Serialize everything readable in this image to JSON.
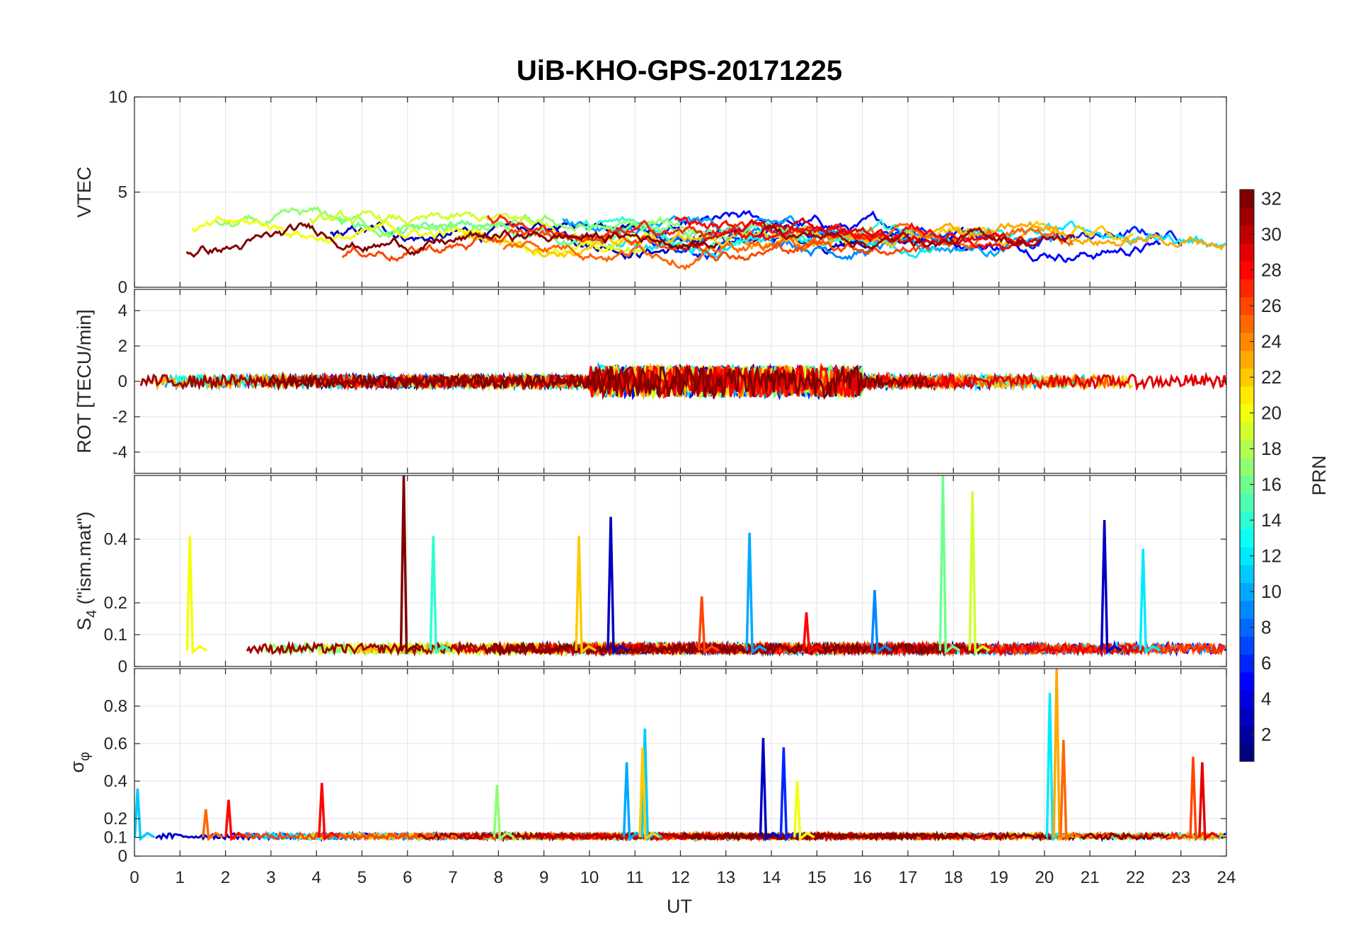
{
  "chart_data": {
    "type": "line",
    "title": "UiB-KHO-GPS-20171225",
    "xlabel": "UT",
    "xlim": [
      0,
      24
    ],
    "x_ticks": [
      "0",
      "1",
      "2",
      "3",
      "4",
      "5",
      "6",
      "7",
      "8",
      "9",
      "10",
      "11",
      "12",
      "13",
      "14",
      "15",
      "16",
      "17",
      "18",
      "19",
      "20",
      "21",
      "22",
      "23",
      "24"
    ],
    "panels": [
      {
        "ylabel": "VTEC",
        "ylim": [
          0,
          10
        ],
        "y_ticks": [
          "0",
          "5",
          "10"
        ],
        "y_tick_values": [
          0,
          5,
          10
        ],
        "baseline": 2.6,
        "noise": 1.1,
        "spikes": []
      },
      {
        "ylabel": "ROT [TECU/min]",
        "ylim": [
          -5.2,
          5.2
        ],
        "y_ticks": [
          "-4",
          "-2",
          "0",
          "2",
          "4"
        ],
        "y_tick_values": [
          -4,
          -2,
          0,
          2,
          4
        ],
        "baseline": 0,
        "noise": 0.6,
        "spikes": []
      },
      {
        "ylabel": "S4 (\"ism.mat\")",
        "ylabel_main": "S",
        "ylabel_sub": "4",
        "ylabel_rest": " (\"ism.mat\")",
        "ylim": [
          0,
          0.6
        ],
        "y_ticks": [
          "0",
          "0.1",
          "0.2",
          "0.4"
        ],
        "y_tick_values": [
          0,
          0.1,
          0.2,
          0.4
        ],
        "baseline": 0.05,
        "noise": 0.015,
        "spikes": [
          {
            "x": 1.25,
            "y": 0.41,
            "prn": 20
          },
          {
            "x": 5.95,
            "y": 0.6,
            "prn": 32
          },
          {
            "x": 6.6,
            "y": 0.41,
            "prn": 14
          },
          {
            "x": 9.8,
            "y": 0.41,
            "prn": 22
          },
          {
            "x": 10.5,
            "y": 0.47,
            "prn": 3
          },
          {
            "x": 13.55,
            "y": 0.42,
            "prn": 10
          },
          {
            "x": 16.3,
            "y": 0.24,
            "prn": 9
          },
          {
            "x": 17.8,
            "y": 0.6,
            "prn": 16
          },
          {
            "x": 18.45,
            "y": 0.55,
            "prn": 19
          },
          {
            "x": 21.35,
            "y": 0.46,
            "prn": 3
          },
          {
            "x": 22.2,
            "y": 0.37,
            "prn": 12
          },
          {
            "x": 12.5,
            "y": 0.22,
            "prn": 26
          },
          {
            "x": 14.8,
            "y": 0.17,
            "prn": 28
          }
        ]
      },
      {
        "ylabel": "σφ",
        "ylabel_main": "σ",
        "ylabel_sub": "φ",
        "ylim": [
          0,
          1
        ],
        "y_ticks": [
          "0",
          "0.1",
          "0.2",
          "0.4",
          "0.6",
          "0.8"
        ],
        "y_tick_values": [
          0,
          0.1,
          0.2,
          0.4,
          0.6,
          0.8
        ],
        "baseline": 0.1,
        "noise": 0.015,
        "spikes": [
          {
            "x": 0.1,
            "y": 0.36,
            "prn": 11
          },
          {
            "x": 1.6,
            "y": 0.25,
            "prn": 25
          },
          {
            "x": 2.1,
            "y": 0.3,
            "prn": 28
          },
          {
            "x": 4.15,
            "y": 0.39,
            "prn": 28
          },
          {
            "x": 8.0,
            "y": 0.38,
            "prn": 17
          },
          {
            "x": 10.85,
            "y": 0.5,
            "prn": 10
          },
          {
            "x": 11.25,
            "y": 0.68,
            "prn": 11
          },
          {
            "x": 11.2,
            "y": 0.58,
            "prn": 22
          },
          {
            "x": 13.85,
            "y": 0.63,
            "prn": 3
          },
          {
            "x": 14.3,
            "y": 0.58,
            "prn": 6
          },
          {
            "x": 14.6,
            "y": 0.4,
            "prn": 20
          },
          {
            "x": 20.15,
            "y": 0.87,
            "prn": 12
          },
          {
            "x": 20.3,
            "y": 1.0,
            "prn": 23
          },
          {
            "x": 20.45,
            "y": 0.62,
            "prn": 25
          },
          {
            "x": 23.3,
            "y": 0.53,
            "prn": 26
          },
          {
            "x": 23.5,
            "y": 0.5,
            "prn": 29
          }
        ]
      }
    ],
    "colorbar": {
      "label": "PRN",
      "colormap": "jet",
      "range": [
        1,
        32
      ],
      "ticks": [
        "2",
        "4",
        "6",
        "8",
        "10",
        "12",
        "14",
        "16",
        "18",
        "20",
        "22",
        "24",
        "26",
        "28",
        "30",
        "32"
      ],
      "tick_values": [
        2,
        4,
        6,
        8,
        10,
        12,
        14,
        16,
        18,
        20,
        22,
        24,
        26,
        28,
        30,
        32
      ]
    },
    "series": [
      {
        "prn": 2
      },
      {
        "prn": 3
      },
      {
        "prn": 5
      },
      {
        "prn": 6
      },
      {
        "prn": 9
      },
      {
        "prn": 10
      },
      {
        "prn": 12
      },
      {
        "prn": 14
      },
      {
        "prn": 16
      },
      {
        "prn": 17
      },
      {
        "prn": 19
      },
      {
        "prn": 20
      },
      {
        "prn": 22
      },
      {
        "prn": 23
      },
      {
        "prn": 25
      },
      {
        "prn": 26
      },
      {
        "prn": 27
      },
      {
        "prn": 28
      },
      {
        "prn": 29
      },
      {
        "prn": 31
      },
      {
        "prn": 32
      }
    ],
    "grid": true
  }
}
